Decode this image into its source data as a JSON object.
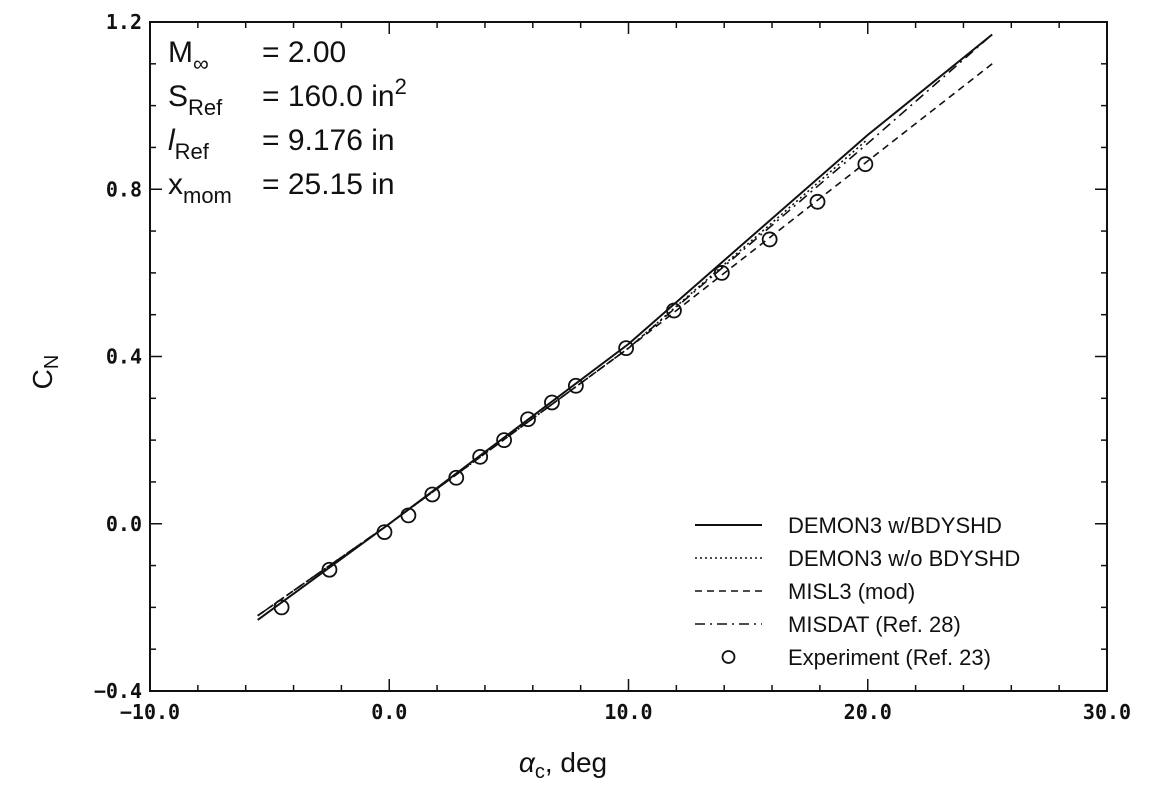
{
  "chart_data": {
    "type": "line",
    "xlabel": "α",
    "xlabel_sub": "c",
    "xlabel_rest": ", deg",
    "ylabel": "C",
    "ylabel_sub": "N",
    "xlim": [
      -10,
      30
    ],
    "ylim": [
      -0.4,
      1.2
    ],
    "x_ticks": [
      -10,
      0,
      10,
      20,
      30
    ],
    "y_ticks": [
      -0.4,
      0.0,
      0.4,
      0.8,
      1.2
    ],
    "x_tick_labels": [
      "−10.0",
      "0.0",
      "10.0",
      "20.0",
      "30.0"
    ],
    "y_tick_labels": [
      "−0.4",
      "0.0",
      "0.4",
      "0.8",
      "1.2"
    ],
    "grid": false,
    "legend_position": "bottom-right",
    "annotations": [
      {
        "sym": "M",
        "sub": "∞",
        "sup": "",
        "value": "= 2.00"
      },
      {
        "sym": "S",
        "sub": "Ref",
        "sup": "",
        "value": "= 160.0 in"
      },
      {
        "sym": "l",
        "sub": "Ref",
        "sup": "",
        "value": "= 9.176 in"
      },
      {
        "sym": "x",
        "sub": "mom",
        "sup": "",
        "value": "= 25.15 in"
      }
    ],
    "annotation_sup": "2",
    "series": [
      {
        "name": "DEMON3 w/BDYSHD",
        "style": "solid",
        "x": [
          -5.5,
          0,
          10,
          20,
          25.2
        ],
        "y": [
          -0.23,
          0.0,
          0.43,
          0.93,
          1.17
        ]
      },
      {
        "name": "DEMON3 w/o BDYSHD",
        "style": "dotted",
        "x": [
          -5.5,
          0,
          10,
          20
        ],
        "y": [
          -0.22,
          0.0,
          0.42,
          0.92
        ]
      },
      {
        "name": "MISL3 (mod)",
        "style": "dashed",
        "x": [
          -5.5,
          0,
          10,
          12,
          25.2
        ],
        "y": [
          -0.22,
          0.0,
          0.42,
          0.51,
          1.1
        ]
      },
      {
        "name": "MISDAT (Ref. 28)",
        "style": "dashdot",
        "x": [
          -5.5,
          0,
          10,
          20,
          25
        ],
        "y": [
          -0.22,
          0.0,
          0.42,
          0.91,
          1.16
        ]
      },
      {
        "name": "Experiment (Ref. 23)",
        "style": "marker",
        "x": [
          -4.5,
          -2.5,
          -0.2,
          0.8,
          1.8,
          2.8,
          3.8,
          4.8,
          5.8,
          6.8,
          7.8,
          9.9,
          11.9,
          13.9,
          15.9,
          17.9,
          19.9
        ],
        "y": [
          -0.2,
          -0.11,
          -0.02,
          0.02,
          0.07,
          0.11,
          0.16,
          0.2,
          0.25,
          0.29,
          0.33,
          0.42,
          0.51,
          0.6,
          0.68,
          0.77,
          0.86
        ]
      }
    ]
  }
}
